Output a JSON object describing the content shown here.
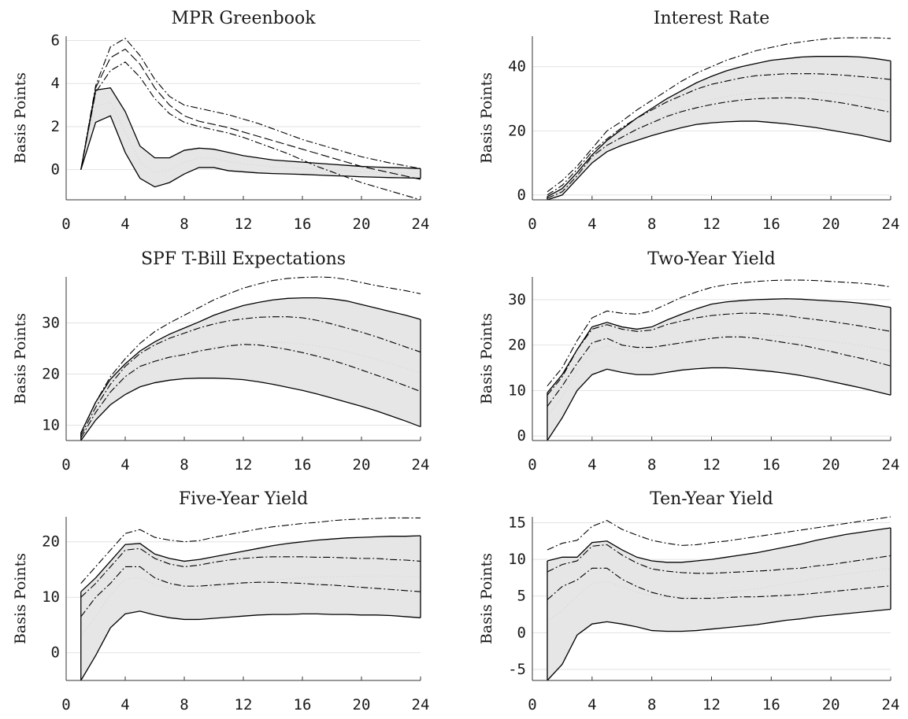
{
  "chart_data": [
    {
      "type": "line",
      "title": "MPR Greenbook",
      "ylabel": "Basis Points",
      "xlim": [
        0,
        24
      ],
      "ylim": [
        -1.4,
        6.2
      ],
      "xticks": [
        0,
        4,
        8,
        12,
        16,
        20,
        24
      ],
      "yticks": [
        0,
        2,
        4,
        6
      ],
      "x": [
        1,
        2,
        3,
        4,
        5,
        6,
        7,
        8,
        9,
        10,
        11,
        12,
        13,
        14,
        15,
        16,
        17,
        18,
        19,
        20,
        21,
        22,
        23,
        24
      ],
      "band": {
        "lower": [
          0,
          2.2,
          2.5,
          0.8,
          -0.4,
          -0.8,
          -0.6,
          -0.2,
          0.1,
          0.1,
          -0.05,
          -0.1,
          -0.15,
          -0.18,
          -0.2,
          -0.22,
          -0.25,
          -0.28,
          -0.3,
          -0.33,
          -0.35,
          -0.37,
          -0.38,
          -0.4
        ],
        "upper": [
          0,
          3.7,
          3.8,
          2.7,
          1.1,
          0.55,
          0.55,
          0.9,
          1.0,
          0.95,
          0.8,
          0.65,
          0.55,
          0.45,
          0.4,
          0.35,
          0.3,
          0.25,
          0.2,
          0.15,
          0.12,
          0.1,
          0.08,
          0.05
        ]
      },
      "lines": [
        {
          "style": "dashdot",
          "values": [
            0,
            3.9,
            5.7,
            6.1,
            5.3,
            4.2,
            3.4,
            3.0,
            2.85,
            2.7,
            2.55,
            2.35,
            2.15,
            1.9,
            1.65,
            1.4,
            1.2,
            1.0,
            0.8,
            0.6,
            0.45,
            0.3,
            0.18,
            0.05
          ]
        },
        {
          "style": "longdash",
          "values": [
            0,
            3.8,
            5.2,
            5.6,
            4.9,
            3.8,
            3.0,
            2.5,
            2.25,
            2.1,
            1.95,
            1.75,
            1.55,
            1.35,
            1.15,
            0.95,
            0.75,
            0.55,
            0.35,
            0.15,
            0.0,
            -0.15,
            -0.3,
            -0.45
          ]
        },
        {
          "style": "dashdot",
          "values": [
            0,
            3.6,
            4.6,
            5.0,
            4.3,
            3.3,
            2.6,
            2.2,
            2.0,
            1.85,
            1.7,
            1.5,
            1.25,
            1.0,
            0.75,
            0.45,
            0.15,
            -0.1,
            -0.35,
            -0.6,
            -0.8,
            -1.0,
            -1.2,
            -1.4
          ]
        }
      ]
    },
    {
      "type": "line",
      "title": "Interest Rate",
      "ylabel": "Basis Points",
      "xlim": [
        0,
        24
      ],
      "ylim": [
        -1.5,
        49.5
      ],
      "xticks": [
        0,
        4,
        8,
        12,
        16,
        20,
        24
      ],
      "yticks": [
        0,
        20,
        40
      ],
      "x": [
        1,
        2,
        3,
        4,
        5,
        6,
        7,
        8,
        9,
        10,
        11,
        12,
        13,
        14,
        15,
        16,
        17,
        18,
        19,
        20,
        21,
        22,
        23,
        24
      ],
      "band": {
        "lower": [
          -1.5,
          0,
          5,
          10,
          13.5,
          15.5,
          17,
          18.5,
          19.8,
          21,
          22,
          22.5,
          22.8,
          23,
          23,
          22.6,
          22.2,
          21.6,
          21,
          20.2,
          19.4,
          18.6,
          17.6,
          16.6
        ],
        "upper": [
          -0.5,
          2,
          7,
          12.5,
          17,
          20.5,
          24,
          27,
          30,
          32.5,
          35,
          37,
          38.7,
          40,
          41,
          42,
          42.5,
          43,
          43.2,
          43.2,
          43.2,
          43,
          42.5,
          41.8
        ]
      },
      "lines": [
        {
          "style": "dashdot",
          "values": [
            1,
            4.5,
            9,
            14.5,
            20,
            23,
            26.5,
            29.5,
            32.5,
            35.5,
            38,
            40,
            42,
            43.5,
            45,
            46,
            47,
            47.7,
            48.3,
            48.8,
            49,
            49,
            49,
            48.8
          ]
        },
        {
          "style": "dashdot",
          "values": [
            0,
            3,
            8,
            13.5,
            17.5,
            21,
            24,
            26.5,
            29,
            31,
            33,
            34.5,
            35.5,
            36.5,
            37.2,
            37.5,
            37.8,
            37.8,
            37.8,
            37.6,
            37.3,
            36.9,
            36.5,
            36
          ]
        },
        {
          "style": "dashdot",
          "values": [
            -1,
            1,
            6,
            12,
            15.5,
            18,
            20.5,
            22.5,
            24.5,
            26,
            27.2,
            28.2,
            29,
            29.6,
            30,
            30.2,
            30.3,
            30.2,
            29.8,
            29.2,
            28.5,
            27.6,
            26.7,
            25.8
          ]
        }
      ]
    },
    {
      "type": "line",
      "title": "SPF T-Bill Expectations",
      "ylabel": "Basis Points",
      "xlim": [
        0,
        24
      ],
      "ylim": [
        7,
        39
      ],
      "xticks": [
        0,
        4,
        8,
        12,
        16,
        20,
        24
      ],
      "yticks": [
        10,
        20,
        30
      ],
      "x": [
        1,
        2,
        3,
        4,
        5,
        6,
        7,
        8,
        9,
        10,
        11,
        12,
        13,
        14,
        15,
        16,
        17,
        18,
        19,
        20,
        21,
        22,
        23,
        24
      ],
      "band": {
        "lower": [
          7,
          11,
          14,
          16,
          17.5,
          18.3,
          18.8,
          19.1,
          19.2,
          19.2,
          19.1,
          18.9,
          18.5,
          18,
          17.4,
          16.8,
          16.1,
          15.3,
          14.5,
          13.7,
          12.8,
          11.8,
          10.8,
          9.7
        ],
        "upper": [
          8.5,
          14.5,
          19,
          22,
          24.5,
          26.3,
          27.8,
          29,
          30.2,
          31.5,
          32.5,
          33.4,
          34,
          34.5,
          34.8,
          34.9,
          34.9,
          34.7,
          34.3,
          33.6,
          32.9,
          32.2,
          31.5,
          30.7
        ]
      },
      "lines": [
        {
          "style": "dashdot",
          "values": [
            8.5,
            14.5,
            19.5,
            23,
            26,
            28.3,
            30,
            31.5,
            33,
            34.5,
            35.7,
            36.8,
            37.6,
            38.3,
            38.7,
            38.9,
            39,
            38.9,
            38.5,
            37.9,
            37.3,
            36.8,
            36.3,
            35.7
          ]
        },
        {
          "style": "dashdot",
          "values": [
            8,
            13.5,
            18,
            21.5,
            24,
            25.7,
            27,
            28,
            29,
            29.8,
            30.4,
            30.8,
            31.1,
            31.2,
            31.2,
            31,
            30.5,
            29.8,
            29,
            28.2,
            27.3,
            26.3,
            25.3,
            24.3
          ]
        },
        {
          "style": "dashdot",
          "values": [
            7.5,
            12.5,
            16.5,
            19.5,
            21.5,
            22.5,
            23.3,
            23.8,
            24.5,
            25,
            25.5,
            25.8,
            25.7,
            25.3,
            24.8,
            24.2,
            23.5,
            22.7,
            21.8,
            20.8,
            19.8,
            18.8,
            17.7,
            16.6
          ]
        }
      ]
    },
    {
      "type": "line",
      "title": "Two-Year Yield",
      "ylabel": "Basis Points",
      "xlim": [
        0,
        24
      ],
      "ylim": [
        -1,
        35
      ],
      "xticks": [
        0,
        4,
        8,
        12,
        16,
        20,
        24
      ],
      "yticks": [
        0,
        10,
        20,
        30
      ],
      "x": [
        1,
        2,
        3,
        4,
        5,
        6,
        7,
        8,
        9,
        10,
        11,
        12,
        13,
        14,
        15,
        16,
        17,
        18,
        19,
        20,
        21,
        22,
        23,
        24
      ],
      "band": {
        "lower": [
          -1,
          4,
          10,
          13.5,
          14.7,
          14,
          13.5,
          13.5,
          14,
          14.5,
          14.8,
          15,
          15,
          14.8,
          14.5,
          14.2,
          13.8,
          13.3,
          12.7,
          12,
          11.3,
          10.6,
          9.8,
          9
        ],
        "upper": [
          9.5,
          13.5,
          19,
          24,
          25,
          24,
          23.5,
          24,
          25.5,
          26.8,
          28,
          29,
          29.5,
          29.8,
          30,
          30.1,
          30.2,
          30.1,
          29.9,
          29.7,
          29.5,
          29.2,
          28.8,
          28.3
        ]
      },
      "lines": [
        {
          "style": "dashdot",
          "values": [
            11,
            15,
            21,
            26,
            27.5,
            27,
            26.8,
            27.5,
            29,
            30.5,
            31.7,
            32.7,
            33.3,
            33.7,
            34,
            34.2,
            34.3,
            34.3,
            34.2,
            34,
            33.8,
            33.6,
            33.3,
            32.8
          ]
        },
        {
          "style": "dashdot",
          "values": [
            9,
            13,
            19,
            23.5,
            24.5,
            23.5,
            23,
            23.3,
            24.5,
            25.3,
            26,
            26.5,
            26.8,
            27,
            27,
            26.8,
            26.5,
            26,
            25.6,
            25.2,
            24.7,
            24.2,
            23.6,
            23
          ]
        },
        {
          "style": "dashdot",
          "values": [
            6.5,
            11,
            16,
            20.5,
            21.5,
            20,
            19.5,
            19.5,
            20,
            20.5,
            21,
            21.5,
            21.8,
            21.8,
            21.5,
            21,
            20.5,
            20,
            19.3,
            18.6,
            17.8,
            17.1,
            16.3,
            15.4
          ]
        }
      ]
    },
    {
      "type": "line",
      "title": "Five-Year Yield",
      "ylabel": "Basis Points",
      "xlim": [
        0,
        24
      ],
      "ylim": [
        -5,
        24.5
      ],
      "xticks": [
        0,
        4,
        8,
        12,
        16,
        20,
        24
      ],
      "yticks": [
        0,
        10,
        20
      ],
      "x": [
        1,
        2,
        3,
        4,
        5,
        6,
        7,
        8,
        9,
        10,
        11,
        12,
        13,
        14,
        15,
        16,
        17,
        18,
        19,
        20,
        21,
        22,
        23,
        24
      ],
      "band": {
        "lower": [
          -5,
          -0.5,
          4.5,
          7,
          7.5,
          6.8,
          6.3,
          6,
          6,
          6.2,
          6.4,
          6.6,
          6.8,
          6.9,
          6.9,
          7,
          7,
          6.9,
          6.9,
          6.8,
          6.8,
          6.7,
          6.5,
          6.3
        ],
        "upper": [
          11,
          13.5,
          16.5,
          19.5,
          19.7,
          17.8,
          17,
          16.5,
          16.8,
          17.3,
          17.8,
          18.3,
          18.8,
          19.3,
          19.7,
          20,
          20.3,
          20.5,
          20.7,
          20.8,
          20.9,
          21,
          21,
          21.1
        ]
      },
      "lines": [
        {
          "style": "dashdot",
          "values": [
            12.5,
            15.5,
            18.5,
            21.5,
            22.2,
            20.8,
            20.3,
            20,
            20.2,
            20.8,
            21.3,
            21.8,
            22.3,
            22.7,
            23,
            23.3,
            23.5,
            23.8,
            24,
            24.1,
            24.2,
            24.3,
            24.3,
            24.3
          ]
        },
        {
          "style": "dashdot",
          "values": [
            10,
            12.5,
            15.5,
            18.5,
            18.8,
            17,
            16,
            15.5,
            15.8,
            16.3,
            16.7,
            17,
            17.2,
            17.3,
            17.3,
            17.3,
            17.2,
            17.2,
            17.1,
            17,
            17,
            16.8,
            16.7,
            16.5
          ]
        },
        {
          "style": "dashdot",
          "values": [
            6.5,
            10,
            12.5,
            15.5,
            15.5,
            13.5,
            12.5,
            12,
            12,
            12.2,
            12.4,
            12.6,
            12.7,
            12.7,
            12.6,
            12.5,
            12.3,
            12.2,
            12,
            11.8,
            11.6,
            11.4,
            11.2,
            11
          ]
        }
      ]
    },
    {
      "type": "line",
      "title": "Ten-Year Yield",
      "ylabel": "Basis Points",
      "xlim": [
        0,
        24
      ],
      "ylim": [
        -6.5,
        15.8
      ],
      "xticks": [
        0,
        4,
        8,
        12,
        16,
        20,
        24
      ],
      "yticks": [
        -5,
        0,
        5,
        10,
        15
      ],
      "x": [
        1,
        2,
        3,
        4,
        5,
        6,
        7,
        8,
        9,
        10,
        11,
        12,
        13,
        14,
        15,
        16,
        17,
        18,
        19,
        20,
        21,
        22,
        23,
        24
      ],
      "band": {
        "lower": [
          -6.5,
          -4.3,
          -0.3,
          1.2,
          1.5,
          1.2,
          0.8,
          0.3,
          0.2,
          0.2,
          0.3,
          0.5,
          0.7,
          0.9,
          1.1,
          1.4,
          1.7,
          1.9,
          2.2,
          2.4,
          2.6,
          2.8,
          3,
          3.2
        ],
        "upper": [
          9.8,
          10.3,
          10.3,
          12.3,
          12.5,
          11.3,
          10.3,
          9.8,
          9.6,
          9.6,
          9.8,
          10,
          10.3,
          10.6,
          10.9,
          11.3,
          11.7,
          12.1,
          12.6,
          13,
          13.4,
          13.7,
          14,
          14.3
        ]
      },
      "lines": [
        {
          "style": "dashdot",
          "values": [
            11.3,
            12.2,
            12.6,
            14.5,
            15.3,
            14.1,
            13.3,
            12.6,
            12.2,
            11.9,
            12,
            12.3,
            12.5,
            12.8,
            13.1,
            13.4,
            13.7,
            14,
            14.3,
            14.6,
            14.9,
            15.2,
            15.5,
            15.8
          ]
        },
        {
          "style": "dashdot",
          "values": [
            8.3,
            9.3,
            9.8,
            11.8,
            12,
            10.6,
            9.5,
            8.7,
            8.4,
            8.2,
            8.1,
            8.1,
            8.2,
            8.3,
            8.4,
            8.5,
            8.7,
            8.8,
            9.1,
            9.3,
            9.6,
            9.9,
            10.2,
            10.5
          ]
        },
        {
          "style": "dashdot",
          "values": [
            4.5,
            6.3,
            7.2,
            8.8,
            8.8,
            7.3,
            6.3,
            5.5,
            5,
            4.7,
            4.7,
            4.7,
            4.8,
            4.9,
            4.9,
            5,
            5.1,
            5.2,
            5.4,
            5.6,
            5.8,
            6,
            6.2,
            6.4
          ]
        }
      ]
    }
  ]
}
